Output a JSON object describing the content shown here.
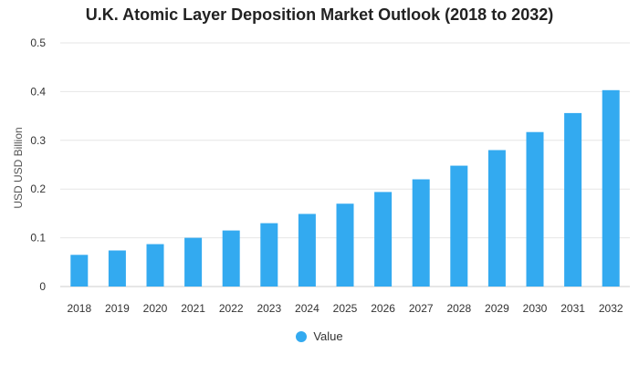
{
  "chart_data": {
    "type": "bar",
    "title": "U.K. Atomic Layer Deposition Market Outlook (2018 to 2032)",
    "xlabel": "",
    "ylabel": "USD USD Billion",
    "categories": [
      "2018",
      "2019",
      "2020",
      "2021",
      "2022",
      "2023",
      "2024",
      "2025",
      "2026",
      "2027",
      "2028",
      "2029",
      "2030",
      "2031",
      "2032"
    ],
    "series": [
      {
        "name": "Value",
        "color": "#33aaf0",
        "values": [
          0.065,
          0.074,
          0.087,
          0.1,
          0.115,
          0.13,
          0.149,
          0.17,
          0.194,
          0.22,
          0.248,
          0.28,
          0.317,
          0.356,
          0.403
        ]
      }
    ],
    "ylim": [
      0,
      0.5
    ],
    "yticks": [
      "0",
      "0.1",
      "0.2",
      "0.3",
      "0.4",
      "0.5"
    ],
    "grid": true,
    "legend_position": "bottom-center"
  }
}
